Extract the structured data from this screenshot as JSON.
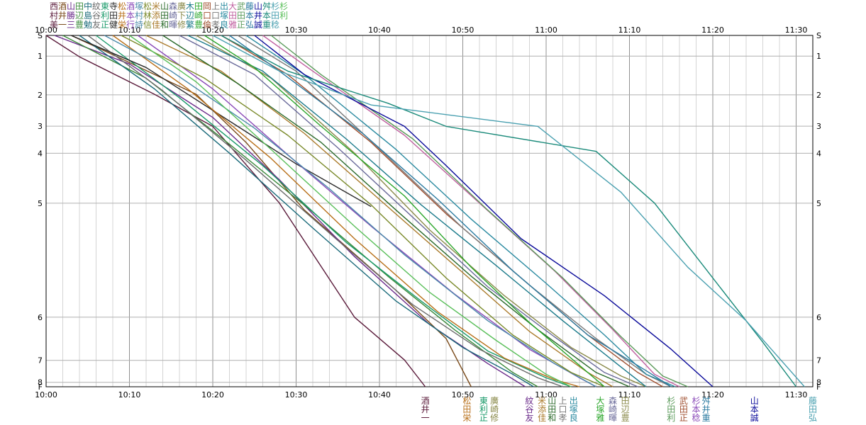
{
  "chart_data": {
    "type": "line",
    "title": "",
    "xlabel": "",
    "ylabel": "",
    "x_ticks": [
      "10:00",
      "10:10",
      "10:20",
      "10:30",
      "10:40",
      "10:50",
      "11:00",
      "11:10",
      "11:20",
      "11:30"
    ],
    "xlim_minutes": [
      0,
      92
    ],
    "y_ticks": [
      {
        "label": "S",
        "km": 0
      },
      {
        "label": "1",
        "km": 1.16
      },
      {
        "label": "2",
        "km": 3.33
      },
      {
        "label": "3",
        "km": 5.09
      },
      {
        "label": "4",
        "km": 6.61
      },
      {
        "label": "5",
        "km": 9.41
      },
      {
        "label": "6",
        "km": 15.8
      },
      {
        "label": "7",
        "km": 18.22
      },
      {
        "label": "8",
        "km": 19.45
      },
      {
        "label": "F",
        "km": 19.7
      }
    ],
    "grid": true,
    "grid_minor_minutes": 2,
    "series": [
      {
        "name": "西村美",
        "color": "#5a1a3a",
        "points": [
          [
            0,
            0
          ],
          [
            4,
            1.2
          ],
          [
            13,
            3.3
          ],
          [
            20,
            5.1
          ],
          [
            28,
            9.4
          ],
          [
            37,
            15.8
          ],
          [
            43,
            18.2
          ],
          [
            45.5,
            19.7
          ]
        ]
      },
      {
        "name": "酒井一",
        "color": "#7a4a1a",
        "points": [
          [
            3,
            0
          ],
          [
            9,
            1.3
          ],
          [
            18,
            3.3
          ],
          [
            24,
            6.0
          ],
          [
            31,
            9.8
          ],
          [
            42,
            14.3
          ],
          [
            48,
            17.0
          ],
          [
            51,
            19.7
          ]
        ]
      },
      {
        "name": "山勝三",
        "color": "#6a2a8a",
        "points": [
          [
            1,
            0
          ],
          [
            10,
            1.6
          ],
          [
            20,
            4.6
          ],
          [
            28,
            8.1
          ],
          [
            37,
            12.4
          ],
          [
            46,
            16.2
          ],
          [
            53,
            18.4
          ],
          [
            57.5,
            19.7
          ]
        ]
      },
      {
        "name": "田辺豊",
        "color": "#3a8a3a",
        "points": [
          [
            2,
            0
          ],
          [
            12,
            2.4
          ],
          [
            22,
            6.1
          ],
          [
            32,
            9.9
          ],
          [
            41,
            13.5
          ],
          [
            49,
            16.5
          ],
          [
            56,
            18.9
          ],
          [
            59,
            19.7
          ]
        ]
      },
      {
        "name": "中島勉",
        "color": "#1a6a7a",
        "points": [
          [
            4,
            0
          ],
          [
            13,
            3.0
          ],
          [
            22,
            6.6
          ],
          [
            32,
            10.8
          ],
          [
            42,
            14.9
          ],
          [
            50,
            17.5
          ],
          [
            56,
            19.0
          ],
          [
            58.5,
            19.7
          ]
        ]
      },
      {
        "name": "紋谷友",
        "color": "#6a6a6a",
        "points": [
          [
            5,
            0
          ],
          [
            14,
            3.1
          ],
          [
            24,
            7.0
          ],
          [
            35,
            11.5
          ],
          [
            44,
            15.1
          ],
          [
            52,
            17.6
          ],
          [
            59,
            19.2
          ],
          [
            62,
            19.7
          ]
        ]
      },
      {
        "name": "東利正",
        "color": "#1a9a6a",
        "points": [
          [
            6,
            0
          ],
          [
            16,
            3.5
          ],
          [
            26,
            7.3
          ],
          [
            36,
            11.6
          ],
          [
            45,
            14.9
          ],
          [
            53,
            17.7
          ],
          [
            60,
            19.2
          ],
          [
            63,
            19.7
          ]
        ]
      },
      {
        "name": "寺田健",
        "color": "#2a2a2a",
        "points": [
          [
            3,
            0
          ],
          [
            12,
            1.8
          ],
          [
            22,
            4.8
          ],
          [
            30,
            7.2
          ],
          [
            39,
            9.6
          ]
        ]
      },
      {
        "name": "松井栄",
        "color": "#b8701a",
        "points": [
          [
            8,
            0
          ],
          [
            17,
            3.0
          ],
          [
            27,
            6.9
          ],
          [
            37,
            11.4
          ],
          [
            47,
            15.5
          ],
          [
            55,
            18.1
          ],
          [
            61,
            19.3
          ],
          [
            64,
            19.7
          ]
        ]
      },
      {
        "name": "酒本行",
        "color": "#8a4ab8",
        "points": [
          [
            11,
            0
          ],
          [
            20,
            3.0
          ],
          [
            30,
            7.1
          ],
          [
            39,
            10.7
          ],
          [
            49,
            14.5
          ],
          [
            58,
            17.6
          ],
          [
            64,
            19.2
          ],
          [
            66,
            19.7
          ]
        ]
      },
      {
        "name": "塚村詩",
        "color": "#4a8aaa",
        "points": [
          [
            7,
            0
          ],
          [
            15,
            2.0
          ],
          [
            25,
            5.2
          ],
          [
            34,
            8.6
          ],
          [
            43,
            12.3
          ],
          [
            53,
            16.0
          ],
          [
            61,
            18.4
          ],
          [
            66,
            19.7
          ]
        ]
      },
      {
        "name": "松林信",
        "color": "#7a8a2a",
        "points": [
          [
            9,
            0
          ],
          [
            19,
            2.4
          ],
          [
            29,
            5.6
          ],
          [
            39,
            9.5
          ],
          [
            48,
            13.6
          ],
          [
            56,
            16.8
          ],
          [
            63,
            18.9
          ],
          [
            67,
            19.7
          ]
        ]
      },
      {
        "name": "米添佳",
        "color": "#aa7a2a",
        "points": [
          [
            12,
            0
          ],
          [
            21,
            2.0
          ],
          [
            31,
            5.5
          ],
          [
            40,
            9.2
          ],
          [
            50,
            13.3
          ],
          [
            58,
            16.6
          ],
          [
            65,
            18.9
          ],
          [
            68,
            19.7
          ]
        ]
      },
      {
        "name": "山田和",
        "color": "#2a6a2a",
        "points": [
          [
            14,
            0
          ],
          [
            23,
            2.7
          ],
          [
            33,
            6.0
          ],
          [
            42,
            9.8
          ],
          [
            51,
            13.5
          ],
          [
            59,
            16.5
          ],
          [
            66,
            18.9
          ],
          [
            70,
            19.7
          ]
        ]
      },
      {
        "name": "森崎暉",
        "color": "#6a6a9a",
        "points": [
          [
            16,
            0
          ],
          [
            25,
            2.2
          ],
          [
            35,
            6.3
          ],
          [
            44,
            10.2
          ],
          [
            53,
            14.1
          ],
          [
            61,
            16.9
          ],
          [
            67,
            18.9
          ],
          [
            71,
            19.7
          ]
        ]
      },
      {
        "name": "廣下修",
        "color": "#8a8a4a",
        "points": [
          [
            18,
            0
          ],
          [
            27,
            2.4
          ],
          [
            37,
            6.6
          ],
          [
            46,
            10.9
          ],
          [
            55,
            14.6
          ],
          [
            63,
            17.5
          ],
          [
            69,
            19.1
          ],
          [
            72,
            19.7
          ]
        ]
      },
      {
        "name": "木辺繁",
        "color": "#1a7a8a",
        "points": [
          [
            17,
            0
          ],
          [
            26,
            2.0
          ],
          [
            36,
            5.8
          ],
          [
            45,
            9.5
          ],
          [
            54,
            12.9
          ],
          [
            62,
            16.0
          ],
          [
            69,
            18.6
          ],
          [
            72,
            19.7
          ]
        ]
      },
      {
        "name": "田崎豊",
        "color": "#2aa62a",
        "points": [
          [
            19,
            0
          ],
          [
            25,
            1.8
          ],
          [
            33,
            5.1
          ],
          [
            43,
            9.0
          ],
          [
            51,
            13.0
          ],
          [
            58,
            16.1
          ],
          [
            64,
            18.5
          ],
          [
            67,
            19.7
          ]
        ]
      },
      {
        "name": "岡口倫",
        "color": "#a05030",
        "points": [
          [
            21,
            0
          ],
          [
            29,
            2.2
          ],
          [
            39,
            6.0
          ],
          [
            48,
            10.0
          ],
          [
            57,
            13.6
          ],
          [
            65,
            16.8
          ],
          [
            71,
            18.9
          ],
          [
            74,
            19.7
          ]
        ]
      },
      {
        "name": "上口孝",
        "color": "#7a7a7a",
        "points": [
          [
            23,
            0
          ],
          [
            30,
            2.0
          ],
          [
            41,
            6.8
          ],
          [
            50,
            10.8
          ],
          [
            58,
            14.0
          ],
          [
            66,
            17.0
          ],
          [
            72,
            19.0
          ],
          [
            75,
            19.7
          ]
        ]
      },
      {
        "name": "出塚良",
        "color": "#2a8aa0",
        "points": [
          [
            24,
            0
          ],
          [
            31,
            2.2
          ],
          [
            42,
            6.4
          ],
          [
            51,
            10.3
          ],
          [
            60,
            13.9
          ],
          [
            67,
            16.8
          ],
          [
            72,
            19.0
          ],
          [
            75.5,
            19.7
          ]
        ]
      },
      {
        "name": "大田雅",
        "color": "#c060a0",
        "points": [
          [
            26,
            0
          ],
          [
            32,
            2.0
          ],
          [
            43,
            5.6
          ],
          [
            52,
            9.4
          ],
          [
            61,
            13.2
          ],
          [
            68,
            16.5
          ],
          [
            73,
            19.0
          ],
          [
            76,
            19.7
          ]
        ]
      },
      {
        "name": "武田正",
        "color": "#5a9a5a",
        "points": [
          [
            27,
            0
          ],
          [
            33,
            2.2
          ],
          [
            44,
            5.8
          ],
          [
            53,
            9.8
          ],
          [
            62,
            13.6
          ],
          [
            69,
            16.9
          ],
          [
            74,
            19.1
          ],
          [
            77,
            19.7
          ]
        ]
      },
      {
        "name": "藤本弘",
        "color": "#2a7aa0",
        "points": [
          [
            22,
            0
          ],
          [
            28,
            2.0
          ],
          [
            38,
            5.5
          ],
          [
            47,
            9.2
          ],
          [
            56,
            13.2
          ],
          [
            65,
            16.8
          ],
          [
            72,
            18.8
          ],
          [
            75,
            19.7
          ]
        ]
      },
      {
        "name": "山井誠",
        "color": "#0a0a9a",
        "points": [
          [
            25,
            0
          ],
          [
            31,
            2.2
          ],
          [
            43,
            5.1
          ],
          [
            48,
            7.3
          ],
          [
            57,
            11.4
          ],
          [
            67,
            14.6
          ],
          [
            75,
            17.6
          ],
          [
            80,
            19.7
          ]
        ]
      },
      {
        "name": "舛本重",
        "color": "#1a8a7a",
        "points": [
          [
            21,
            0
          ],
          [
            29,
            2.0
          ],
          [
            41,
            3.8
          ],
          [
            48,
            5.1
          ],
          [
            66,
            6.5
          ],
          [
            73,
            9.4
          ],
          [
            80,
            13.6
          ],
          [
            86,
            17.2
          ],
          [
            90,
            19.7
          ]
        ]
      },
      {
        "name": "杉田稔",
        "color": "#4aa0b0",
        "points": [
          [
            20,
            0
          ],
          [
            28,
            2.0
          ],
          [
            39,
            3.9
          ],
          [
            59,
            5.1
          ],
          [
            69,
            8.8
          ],
          [
            77,
            13.0
          ],
          [
            84,
            16.0
          ],
          [
            91,
            19.7
          ]
        ]
      },
      {
        "name": "杉利",
        "color": "#5abf5a",
        "points": [
          [
            10,
            0
          ],
          [
            18,
            2.6
          ],
          [
            27,
            6.4
          ],
          [
            37,
            10.7
          ],
          [
            46,
            14.4
          ],
          [
            54,
            17.1
          ],
          [
            60,
            19.0
          ],
          [
            63,
            19.7
          ]
        ]
      }
    ],
    "end_labels": [
      {
        "minute": 45.5,
        "color": "#5a1a3a",
        "lines": [
          "酒",
          "井",
          "一"
        ]
      },
      {
        "minute": 50.5,
        "color": "#b8701a",
        "lines": [
          "松",
          "田",
          "栄"
        ]
      },
      {
        "minute": 52.5,
        "color": "#1a9a6a",
        "lines": [
          "東",
          "利",
          "正"
        ]
      },
      {
        "minute": 53.8,
        "color": "#8a8a4a",
        "lines": [
          "廣",
          "崎",
          "修"
        ]
      },
      {
        "minute": 58.0,
        "color": "#6a2a8a",
        "lines": [
          "紋",
          "谷",
          "友"
        ]
      },
      {
        "minute": 59.5,
        "color": "#aa7a2a",
        "lines": [
          "米",
          "添",
          "佳"
        ]
      },
      {
        "minute": 60.7,
        "color": "#2a6a2a",
        "lines": [
          "山",
          "田",
          "和"
        ]
      },
      {
        "minute": 62.0,
        "color": "#7a7a7a",
        "lines": [
          "上",
          "口",
          "孝"
        ]
      },
      {
        "minute": 63.3,
        "color": "#2a8aa0",
        "lines": [
          "出",
          "塚",
          "良"
        ]
      },
      {
        "minute": 66.5,
        "color": "#2aa62a",
        "lines": [
          "大",
          "塚",
          "雅"
        ]
      },
      {
        "minute": 68.0,
        "color": "#6a6a9a",
        "lines": [
          "森",
          "崎",
          "暉"
        ]
      },
      {
        "minute": 69.5,
        "color": "#8a8a4a",
        "lines": [
          "田",
          "辺",
          "豊"
        ]
      },
      {
        "minute": 75.0,
        "color": "#5a9a5a",
        "lines": [
          "杉",
          "田",
          "利"
        ]
      },
      {
        "minute": 76.5,
        "color": "#a05030",
        "lines": [
          "武",
          "田",
          "正"
        ]
      },
      {
        "minute": 78.0,
        "color": "#8a4ab8",
        "lines": [
          "杉",
          "本",
          "稔"
        ]
      },
      {
        "minute": 79.2,
        "color": "#2a7aa0",
        "lines": [
          "舛",
          "井",
          "重"
        ]
      },
      {
        "minute": 85.0,
        "color": "#0a0a9a",
        "lines": [
          "山",
          "本",
          "誠"
        ]
      },
      {
        "minute": 92.0,
        "color": "#4aa0b0",
        "lines": [
          "藤",
          "田",
          "弘"
        ]
      }
    ]
  }
}
